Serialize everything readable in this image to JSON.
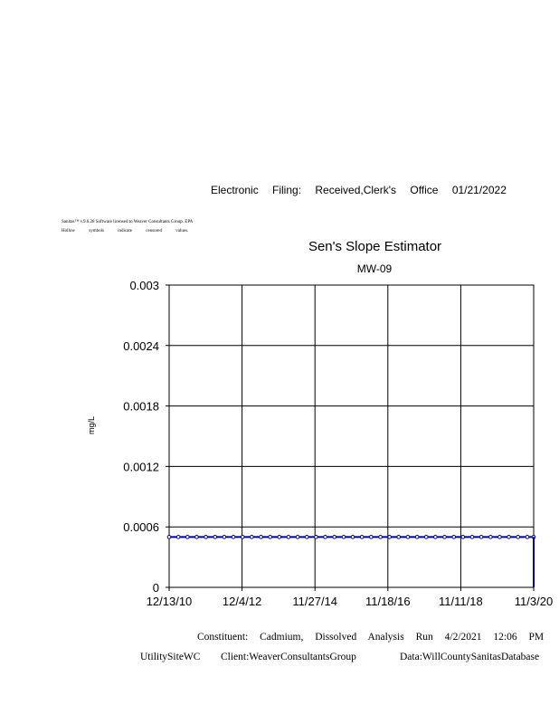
{
  "header": "Electronic Filing: Received,Clerk's Office 01/21/2022",
  "notes": [
    "Sanitas™ v.9.6.28 Software licensed to Weaver Consultants Group. EPA",
    "Hollow symbols indicate censored values."
  ],
  "footer": {
    "line1": "Constituent: Cadmium, Dissolved Analysis Run 4/2/2021 12:06 PM",
    "site": "UtilitySiteWC",
    "client": "Client:WeaverConsultantsGroup",
    "data": "Data:WillCountySanitasDatabase"
  },
  "chart_data": {
    "type": "line",
    "title": "Sen's Slope Estimator",
    "subtitle": "MW-09",
    "ylabel": "mg/L",
    "xlabel": "",
    "ylim": [
      0,
      0.003
    ],
    "yticks": [
      "0",
      "0.0006",
      "0.0012",
      "0.0018",
      "0.0024",
      "0.003"
    ],
    "xticks": [
      "12/13/10",
      "12/4/12",
      "11/27/14",
      "11/18/16",
      "11/11/18",
      "11/3/20"
    ],
    "xlim": [
      "2010-12-13",
      "2020-11-03"
    ],
    "grid": true,
    "marker": "hollow",
    "color": "#000080",
    "x": [
      "2010-12-13",
      "2011-03-14",
      "2011-06-13",
      "2011-09-12",
      "2011-12-12",
      "2012-03-12",
      "2012-06-11",
      "2012-09-10",
      "2012-12-10",
      "2013-03-11",
      "2013-06-10",
      "2013-09-09",
      "2013-12-09",
      "2014-03-10",
      "2014-06-09",
      "2014-09-08",
      "2014-12-08",
      "2015-03-09",
      "2015-06-08",
      "2015-09-08",
      "2015-12-07",
      "2016-03-07",
      "2016-06-06",
      "2016-09-06",
      "2016-12-05",
      "2017-03-06",
      "2017-06-05",
      "2017-09-05",
      "2017-12-04",
      "2018-03-05",
      "2018-06-04",
      "2018-09-04",
      "2018-12-03",
      "2019-03-04",
      "2019-06-03",
      "2019-09-03",
      "2019-12-02",
      "2020-03-02",
      "2020-06-01",
      "2020-09-01",
      "2020-11-03"
    ],
    "y_value": 0.0005,
    "slope_line": {
      "x": [
        "2020-11-03",
        "2020-11-03"
      ],
      "y": [
        0.0005,
        0
      ]
    }
  }
}
